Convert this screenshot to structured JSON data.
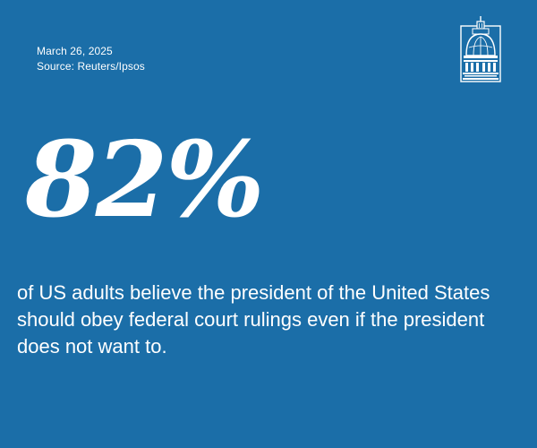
{
  "date": "March 26, 2025",
  "source": "Source: Reuters/Ipsos",
  "stat": "82%",
  "statement": "of US adults believe the president of the United States should obey federal court rulings even if the president does not want to.",
  "colors": {
    "background": "#1b6ea8",
    "text": "#ffffff"
  },
  "logo_icon": "capitol-dome-icon"
}
